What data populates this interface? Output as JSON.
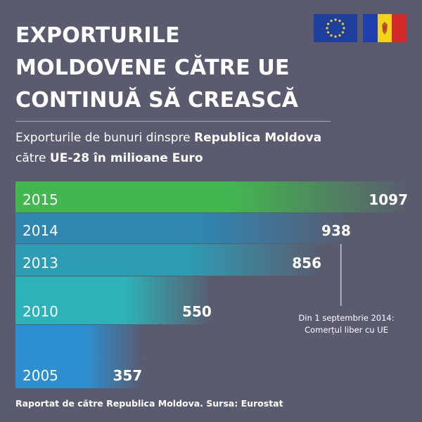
{
  "header": {
    "title_lines": [
      "EXPORTURILE",
      "MOLDOVENE CĂTRE UE",
      "CONTINUĂ SĂ CREASCĂ"
    ],
    "subtitle": {
      "part1": "Exporturile de bunuri dinspre ",
      "bold1": "Republica Moldova",
      "part2": "către ",
      "bold2": "UE-28 în milioane Euro"
    }
  },
  "annotation": {
    "line1": "Din 1 septembrie 2014:",
    "line2": "Comerțul liber cu UE"
  },
  "footer": "Raportat de către Republica Moldova. Sursa: Eurostat",
  "colors": {
    "background": "#5a5b6e",
    "bar_2015": "#43b64f",
    "bar_2014": "#2f86b1",
    "bar_2013": "#2d9db6",
    "bar_2010": "#2cb3b8",
    "bar_2005": "#2e8fd0",
    "eu_blue": "#1e3f9c",
    "eu_star": "#f7d21b",
    "md_blue": "#1f3fae",
    "md_yellow": "#f7d21b",
    "md_red": "#d42a2a"
  },
  "icons": {
    "eu_flag": "eu-flag-icon",
    "md_flag": "moldova-flag-icon"
  },
  "chart_data": {
    "type": "bar",
    "orientation": "horizontal",
    "title": "EXPORTURILE MOLDOVENE CĂTRE UE CONTINUĂ SĂ CREASCĂ",
    "categories": [
      "2015",
      "2014",
      "2013",
      "2010",
      "2005"
    ],
    "values": [
      1097,
      938,
      856,
      550,
      357
    ],
    "unit": "milioane Euro",
    "xlim": [
      0,
      1097
    ]
  }
}
